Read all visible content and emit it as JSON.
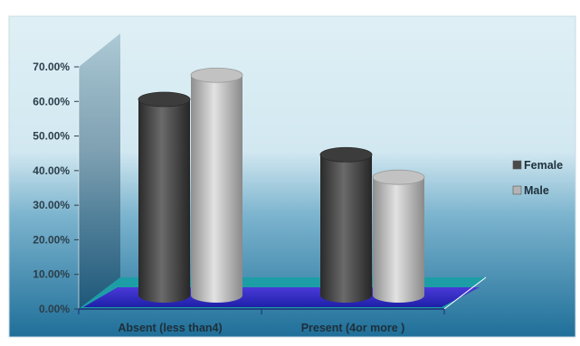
{
  "chart_data": {
    "type": "bar",
    "title": "",
    "xlabel": "",
    "ylabel": "",
    "ylim": [
      0,
      70
    ],
    "y_ticks": [
      "0.00%",
      "10.00%",
      "20.00%",
      "30.00%",
      "40.00%",
      "50.00%",
      "60.00%",
      "70.00%"
    ],
    "categories": [
      "Absent (less than4)",
      "Present (4or more )"
    ],
    "series": [
      {
        "name": "Female",
        "values": [
          58.5,
          42.5
        ],
        "color": "#4a4a4a"
      },
      {
        "name": "Male",
        "values": [
          65.5,
          36.0
        ],
        "color": "#b4b4b4"
      }
    ],
    "legend_position": "right",
    "grid": false
  }
}
